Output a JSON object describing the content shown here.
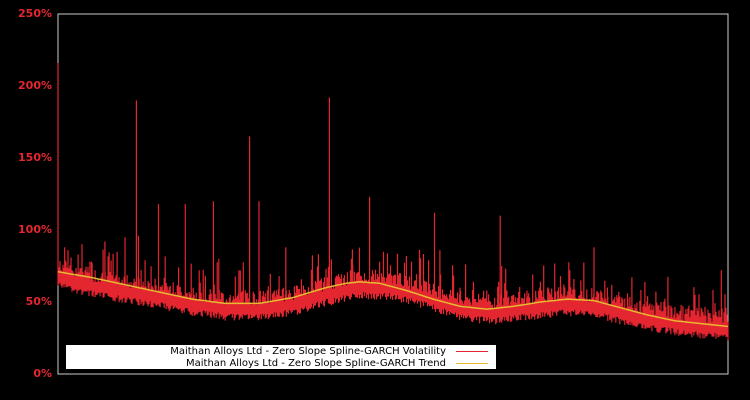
{
  "chart_data": {
    "type": "line",
    "title": "",
    "xlabel": "",
    "ylabel": "",
    "ylim": [
      0,
      250
    ],
    "y_ticks": [
      "0%",
      "50%",
      "100%",
      "150%",
      "200%",
      "250%"
    ],
    "y_tick_values": [
      0,
      50,
      100,
      150,
      200,
      250
    ],
    "grid": false,
    "legend_position": "lower-left",
    "background": "#000000",
    "axis_color": "#cccccc",
    "tick_label_color": "#e3262f",
    "series": [
      {
        "name": "Maithan Alloys Ltd - Zero Slope Spline-GARCH Volatility",
        "color": "#e3262f",
        "baseline_points": [
          [
            0,
            68
          ],
          [
            0.05,
            62
          ],
          [
            0.1,
            58
          ],
          [
            0.15,
            54
          ],
          [
            0.2,
            49
          ],
          [
            0.25,
            46
          ],
          [
            0.3,
            46
          ],
          [
            0.35,
            49
          ],
          [
            0.4,
            56
          ],
          [
            0.45,
            61
          ],
          [
            0.5,
            60
          ],
          [
            0.55,
            54
          ],
          [
            0.6,
            46
          ],
          [
            0.65,
            43
          ],
          [
            0.7,
            46
          ],
          [
            0.75,
            49
          ],
          [
            0.8,
            48
          ],
          [
            0.85,
            42
          ],
          [
            0.9,
            37
          ],
          [
            0.95,
            34
          ],
          [
            1,
            32
          ]
        ],
        "spikes": [
          [
            0.0,
            216
          ],
          [
            0.01,
            88
          ],
          [
            0.03,
            83
          ],
          [
            0.05,
            78
          ],
          [
            0.07,
            92
          ],
          [
            0.1,
            95
          ],
          [
            0.12,
            96
          ],
          [
            0.15,
            75
          ],
          [
            0.18,
            74
          ],
          [
            0.19,
            118
          ],
          [
            0.22,
            68
          ],
          [
            0.24,
            80
          ],
          [
            0.27,
            72
          ],
          [
            0.3,
            120
          ],
          [
            0.33,
            68
          ],
          [
            0.34,
            88
          ],
          [
            0.38,
            70
          ],
          [
            0.4,
            73
          ],
          [
            0.44,
            76
          ],
          [
            0.48,
            78
          ],
          [
            0.5,
            68
          ],
          [
            0.52,
            82
          ],
          [
            0.54,
            65
          ],
          [
            0.57,
            86
          ],
          [
            0.6,
            60
          ],
          [
            0.62,
            64
          ],
          [
            0.64,
            58
          ],
          [
            0.66,
            55
          ],
          [
            0.67,
            58
          ],
          [
            0.7,
            58
          ],
          [
            0.72,
            64
          ],
          [
            0.75,
            68
          ],
          [
            0.77,
            66
          ],
          [
            0.8,
            88
          ],
          [
            0.82,
            60
          ],
          [
            0.85,
            56
          ],
          [
            0.88,
            54
          ],
          [
            0.9,
            50
          ],
          [
            0.93,
            48
          ],
          [
            0.96,
            46
          ],
          [
            0.99,
            72
          ]
        ],
        "labelled_spikes": [
          [
            0.0,
            216
          ],
          [
            0.117,
            190
          ],
          [
            0.286,
            165
          ],
          [
            0.405,
            192
          ],
          [
            0.232,
            120
          ],
          [
            0.465,
            123
          ],
          [
            0.562,
            112
          ],
          [
            0.66,
            110
          ],
          [
            0.15,
            118
          ]
        ]
      },
      {
        "name": "Maithan Alloys Ltd - Zero Slope Spline-GARCH Trend",
        "color": "#e8b830",
        "points": [
          [
            0,
            71
          ],
          [
            0.05,
            67
          ],
          [
            0.1,
            62
          ],
          [
            0.15,
            57
          ],
          [
            0.2,
            52
          ],
          [
            0.25,
            49
          ],
          [
            0.3,
            49
          ],
          [
            0.35,
            53
          ],
          [
            0.4,
            60
          ],
          [
            0.43,
            63
          ],
          [
            0.45,
            64
          ],
          [
            0.48,
            63
          ],
          [
            0.52,
            58
          ],
          [
            0.56,
            52
          ],
          [
            0.6,
            47
          ],
          [
            0.64,
            45
          ],
          [
            0.68,
            47
          ],
          [
            0.72,
            50
          ],
          [
            0.76,
            52
          ],
          [
            0.8,
            51
          ],
          [
            0.84,
            46
          ],
          [
            0.88,
            41
          ],
          [
            0.92,
            37
          ],
          [
            0.96,
            35
          ],
          [
            1,
            33
          ]
        ]
      }
    ]
  },
  "legend": {
    "items": [
      {
        "label": "Maithan Alloys Ltd - Zero Slope Spline-GARCH Volatility",
        "color": "#e3262f"
      },
      {
        "label": "Maithan Alloys Ltd - Zero Slope Spline-GARCH Trend",
        "color": "#e8b830"
      }
    ]
  }
}
